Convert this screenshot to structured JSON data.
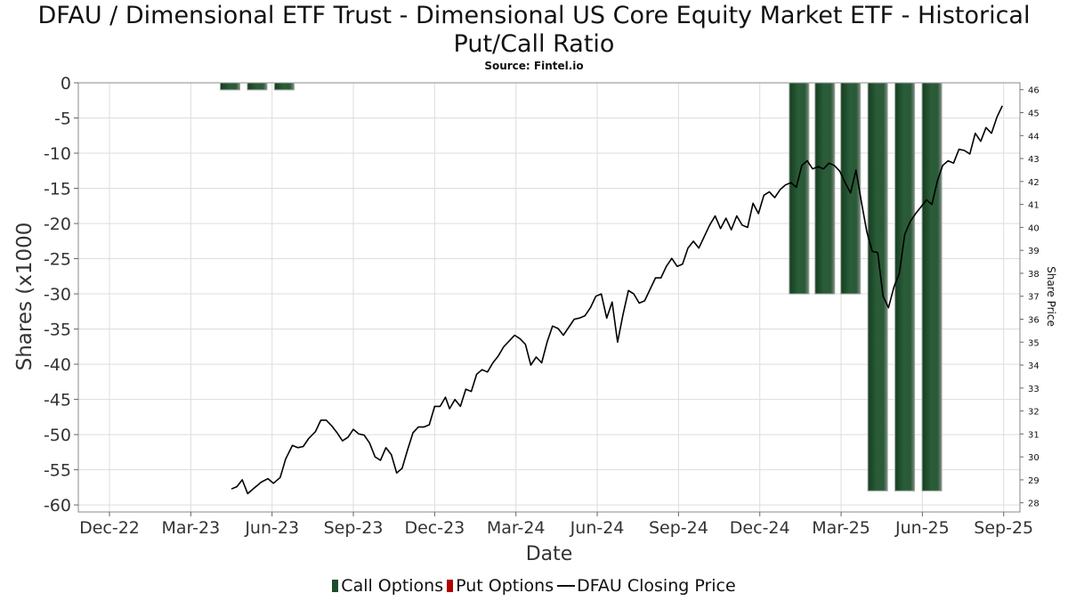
{
  "title": "DFAU / Dimensional ETF Trust - Dimensional US Core Equity Market ETF - Historical Put/Call Ratio",
  "source": "Source: Fintel.io",
  "colors": {
    "call": "#1e4d2b",
    "put": "#b00000",
    "price": "#000000",
    "grid": "#dddddd"
  },
  "chart_data": {
    "type": "bar",
    "xlabel": "Date",
    "ylabel": "Shares (x1000",
    "y2label": "Share Price",
    "ylim": [
      -61,
      0
    ],
    "y2lim": [
      27.6,
      46.3
    ],
    "yticks": [
      0,
      -5,
      -10,
      -15,
      -20,
      -25,
      -30,
      -35,
      -40,
      -45,
      -50,
      -55,
      -60
    ],
    "y2ticks": [
      28,
      29,
      30,
      31,
      32,
      33,
      34,
      35,
      36,
      37,
      38,
      39,
      40,
      41,
      42,
      43,
      44,
      45,
      46
    ],
    "xlim": [
      -1.15,
      33.6
    ],
    "xticks": [
      "Dec-22",
      "Mar-23",
      "Jun-23",
      "Sep-23",
      "Dec-23",
      "Mar-24",
      "Jun-24",
      "Sep-24",
      "Dec-24",
      "Mar-25",
      "Jun-25",
      "Sep-25"
    ],
    "legend": [
      "Call Options",
      "Put Options",
      "DFAU Closing Price"
    ],
    "legend_position": "bottom",
    "grid": true,
    "series": [
      {
        "name": "Call Options",
        "kind": "bar",
        "bars": [
          {
            "x": 4.45,
            "value": -1
          },
          {
            "x": 5.45,
            "value": -1
          },
          {
            "x": 6.45,
            "value": -1
          },
          {
            "x": 25.45,
            "value": -30
          },
          {
            "x": 26.4,
            "value": -30
          },
          {
            "x": 27.35,
            "value": -30
          },
          {
            "x": 28.35,
            "value": -58
          },
          {
            "x": 29.35,
            "value": -58
          },
          {
            "x": 30.35,
            "value": -58
          }
        ]
      },
      {
        "name": "Put Options",
        "kind": "bar",
        "bars": []
      },
      {
        "name": "DFAU Closing Price",
        "kind": "line",
        "axis": "right",
        "points": [
          [
            4.5,
            28.6
          ],
          [
            4.7,
            28.7
          ],
          [
            4.9,
            29.0
          ],
          [
            5.1,
            28.4
          ],
          [
            5.35,
            28.65
          ],
          [
            5.6,
            28.9
          ],
          [
            5.85,
            29.05
          ],
          [
            6.05,
            28.85
          ],
          [
            6.3,
            29.1
          ],
          [
            6.5,
            29.9
          ],
          [
            6.75,
            30.5
          ],
          [
            6.95,
            30.4
          ],
          [
            7.15,
            30.45
          ],
          [
            7.35,
            30.8
          ],
          [
            7.6,
            31.1
          ],
          [
            7.8,
            31.6
          ],
          [
            8.0,
            31.6
          ],
          [
            8.2,
            31.35
          ],
          [
            8.4,
            31.05
          ],
          [
            8.6,
            30.7
          ],
          [
            8.8,
            30.85
          ],
          [
            9.0,
            31.2
          ],
          [
            9.2,
            31.0
          ],
          [
            9.4,
            30.95
          ],
          [
            9.6,
            30.6
          ],
          [
            9.8,
            30.0
          ],
          [
            10.0,
            29.85
          ],
          [
            10.2,
            30.4
          ],
          [
            10.4,
            30.1
          ],
          [
            10.6,
            29.3
          ],
          [
            10.8,
            29.5
          ],
          [
            11.0,
            30.3
          ],
          [
            11.2,
            31.05
          ],
          [
            11.4,
            31.3
          ],
          [
            11.6,
            31.3
          ],
          [
            11.8,
            31.4
          ],
          [
            12.0,
            32.2
          ],
          [
            12.2,
            32.2
          ],
          [
            12.4,
            32.6
          ],
          [
            12.55,
            32.1
          ],
          [
            12.75,
            32.5
          ],
          [
            12.95,
            32.2
          ],
          [
            13.15,
            32.95
          ],
          [
            13.35,
            32.85
          ],
          [
            13.55,
            33.6
          ],
          [
            13.75,
            33.8
          ],
          [
            13.95,
            33.7
          ],
          [
            14.15,
            34.1
          ],
          [
            14.35,
            34.4
          ],
          [
            14.55,
            34.8
          ],
          [
            14.75,
            35.05
          ],
          [
            14.95,
            35.3
          ],
          [
            15.15,
            35.15
          ],
          [
            15.35,
            34.9
          ],
          [
            15.55,
            34.0
          ],
          [
            15.75,
            34.35
          ],
          [
            15.95,
            34.1
          ],
          [
            16.15,
            35.0
          ],
          [
            16.35,
            35.7
          ],
          [
            16.55,
            35.6
          ],
          [
            16.75,
            35.3
          ],
          [
            16.95,
            35.65
          ],
          [
            17.15,
            36.0
          ],
          [
            17.35,
            36.05
          ],
          [
            17.55,
            36.15
          ],
          [
            17.75,
            36.5
          ],
          [
            17.95,
            37.0
          ],
          [
            18.15,
            37.1
          ],
          [
            18.35,
            36.05
          ],
          [
            18.55,
            36.75
          ],
          [
            18.75,
            35.0
          ],
          [
            18.95,
            36.2
          ],
          [
            19.15,
            37.25
          ],
          [
            19.35,
            37.1
          ],
          [
            19.55,
            36.7
          ],
          [
            19.75,
            36.8
          ],
          [
            19.95,
            37.3
          ],
          [
            20.15,
            37.8
          ],
          [
            20.35,
            37.8
          ],
          [
            20.55,
            38.3
          ],
          [
            20.75,
            38.65
          ],
          [
            20.95,
            38.3
          ],
          [
            21.15,
            38.4
          ],
          [
            21.35,
            39.1
          ],
          [
            21.55,
            39.4
          ],
          [
            21.75,
            39.1
          ],
          [
            21.95,
            39.6
          ],
          [
            22.15,
            40.1
          ],
          [
            22.35,
            40.5
          ],
          [
            22.55,
            39.95
          ],
          [
            22.75,
            40.4
          ],
          [
            22.95,
            39.9
          ],
          [
            23.15,
            40.5
          ],
          [
            23.35,
            40.1
          ],
          [
            23.55,
            40.0
          ],
          [
            23.75,
            41.05
          ],
          [
            23.95,
            40.6
          ],
          [
            24.15,
            41.4
          ],
          [
            24.35,
            41.55
          ],
          [
            24.55,
            41.3
          ],
          [
            24.75,
            41.65
          ],
          [
            24.95,
            41.85
          ],
          [
            25.15,
            41.95
          ],
          [
            25.35,
            41.75
          ],
          [
            25.55,
            42.7
          ],
          [
            25.75,
            42.9
          ],
          [
            25.95,
            42.55
          ],
          [
            26.15,
            42.65
          ],
          [
            26.35,
            42.55
          ],
          [
            26.55,
            42.8
          ],
          [
            26.75,
            42.7
          ],
          [
            26.95,
            42.45
          ],
          [
            27.15,
            41.95
          ],
          [
            27.35,
            41.5
          ],
          [
            27.55,
            42.5
          ],
          [
            27.75,
            41.1
          ],
          [
            27.95,
            39.8
          ],
          [
            28.15,
            38.95
          ],
          [
            28.35,
            38.9
          ],
          [
            28.55,
            37.0
          ],
          [
            28.75,
            36.5
          ],
          [
            28.95,
            37.4
          ],
          [
            29.15,
            38.0
          ],
          [
            29.35,
            39.7
          ],
          [
            29.55,
            40.25
          ],
          [
            29.75,
            40.6
          ],
          [
            29.95,
            40.9
          ],
          [
            30.15,
            41.2
          ],
          [
            30.35,
            41.0
          ],
          [
            30.55,
            42.0
          ],
          [
            30.75,
            42.7
          ],
          [
            30.95,
            42.9
          ],
          [
            31.15,
            42.8
          ],
          [
            31.35,
            43.4
          ],
          [
            31.55,
            43.35
          ],
          [
            31.75,
            43.2
          ],
          [
            31.95,
            44.1
          ],
          [
            32.15,
            43.75
          ],
          [
            32.35,
            44.35
          ],
          [
            32.55,
            44.1
          ],
          [
            32.75,
            44.8
          ],
          [
            32.95,
            45.3
          ]
        ]
      }
    ]
  }
}
